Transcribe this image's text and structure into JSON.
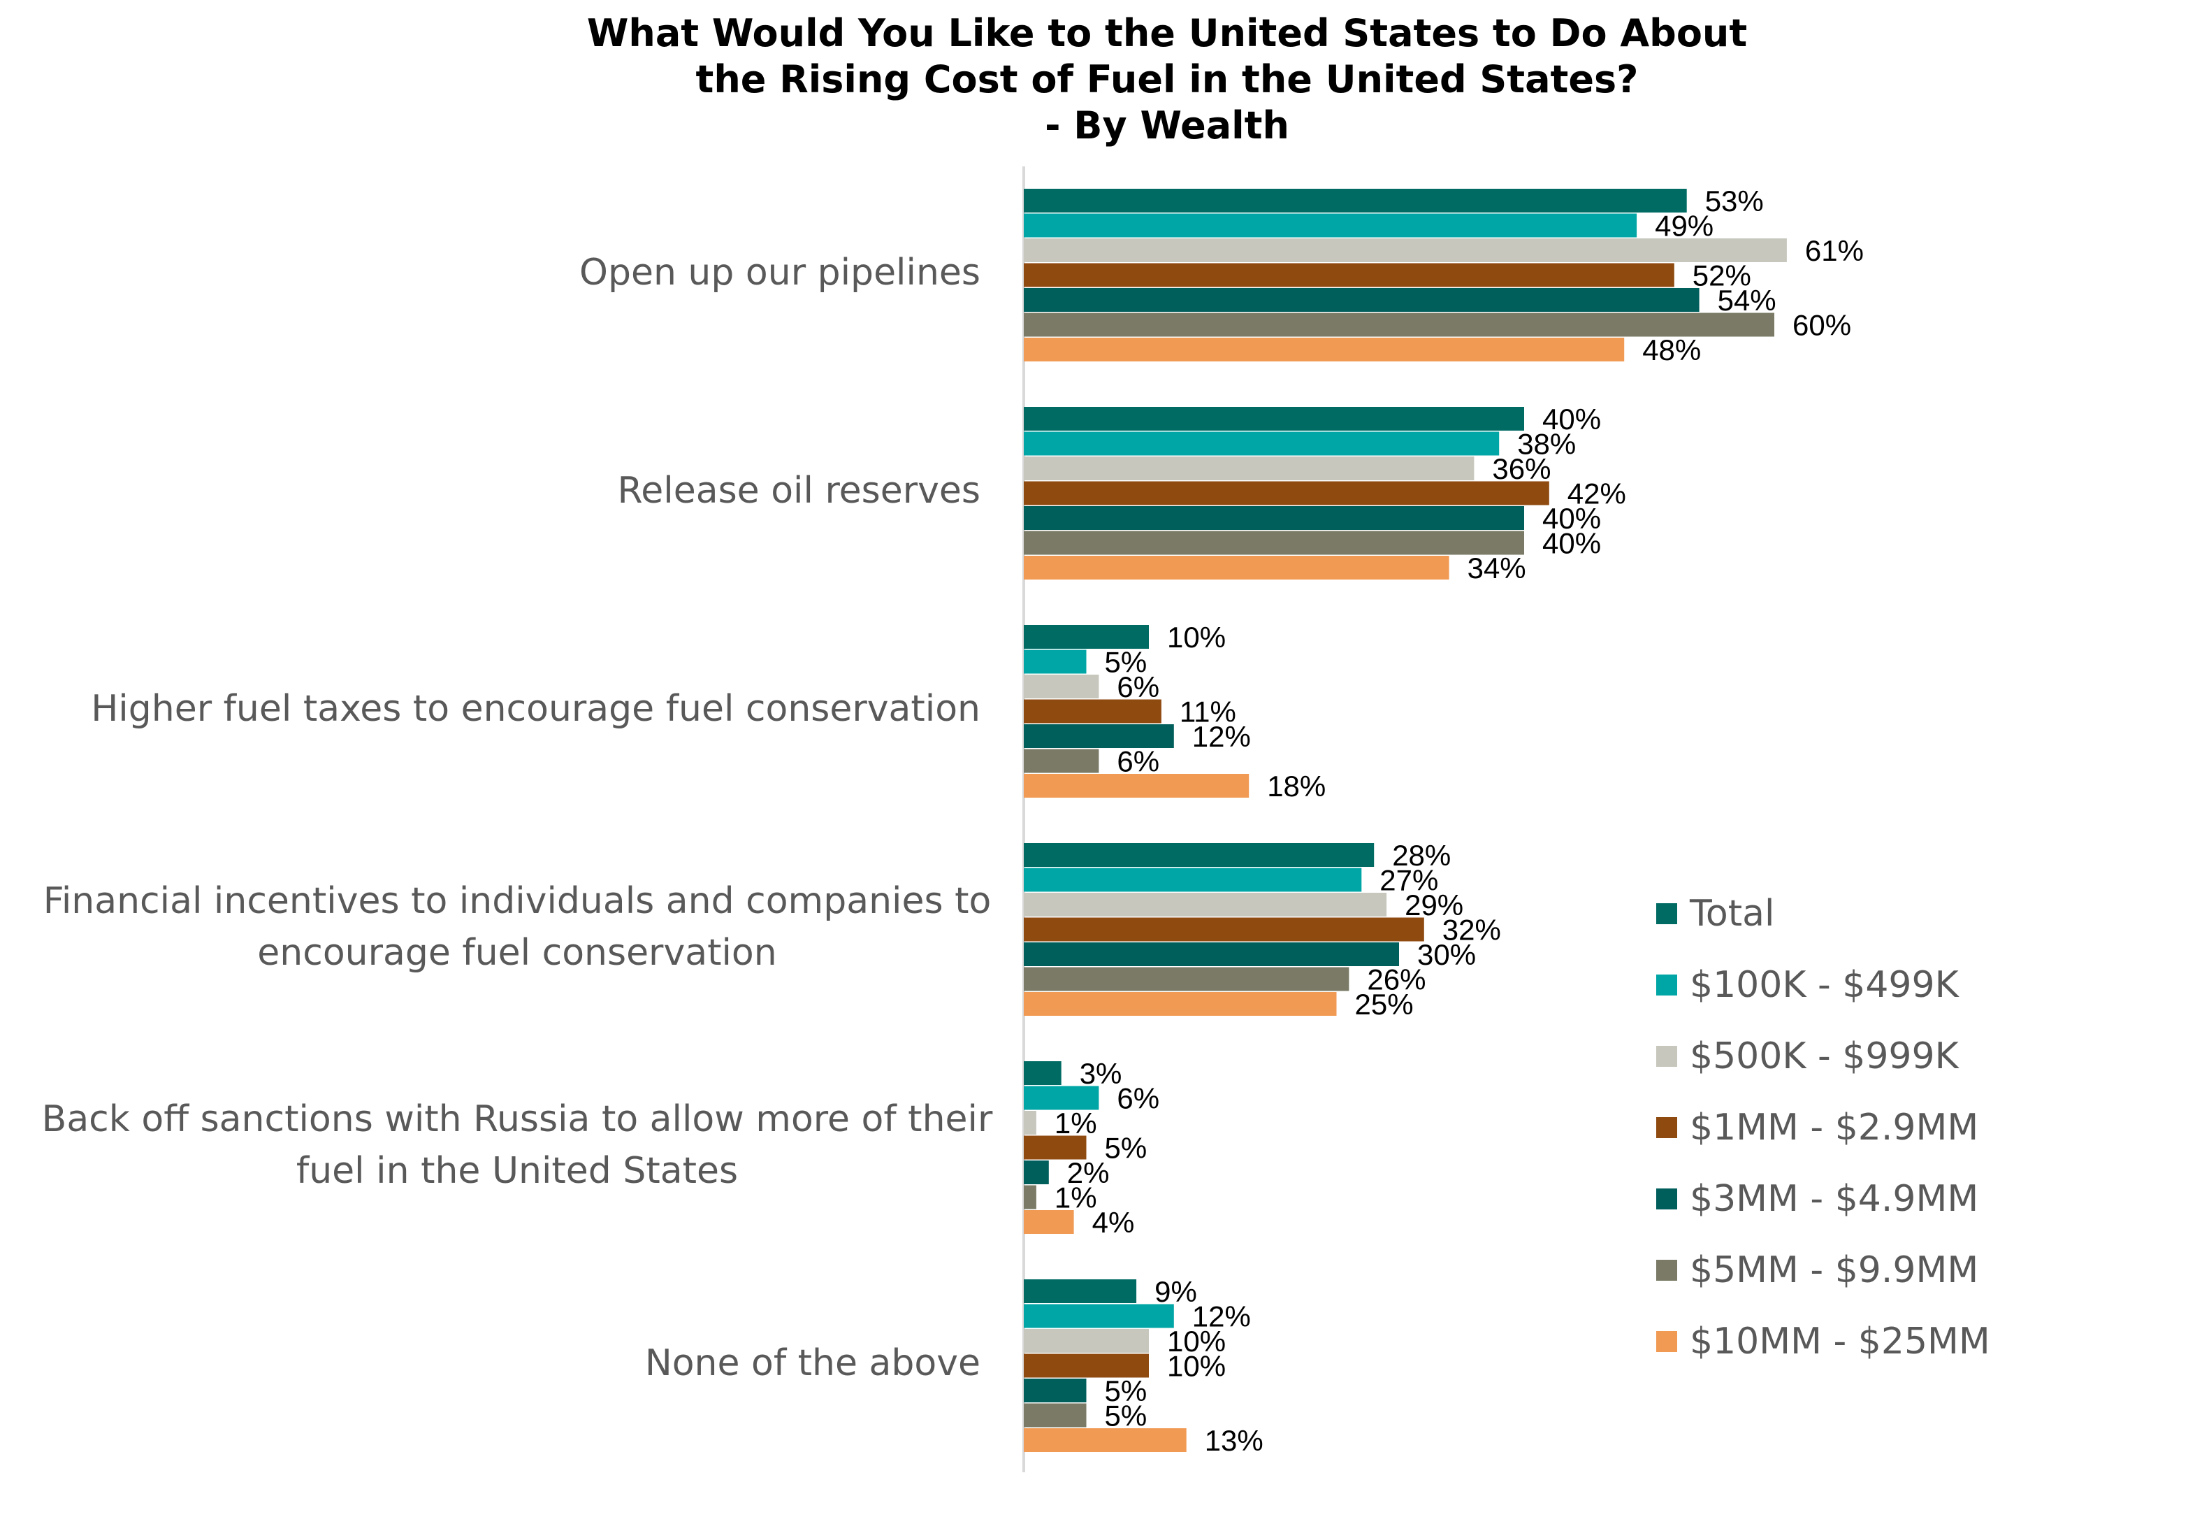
{
  "chart_data": {
    "type": "bar",
    "orientation": "horizontal",
    "title": [
      "What Would You Like to the United States to Do About",
      "the Rising Cost of Fuel in the United States?",
      "- By Wealth"
    ],
    "value_suffix": "%",
    "categories": [
      [
        "Open up our pipelines"
      ],
      [
        "Release oil reserves"
      ],
      [
        "Higher fuel taxes to encourage fuel conservation"
      ],
      [
        "Financial incentives to individuals and companies to",
        "encourage fuel conservation"
      ],
      [
        "Back off sanctions with Russia to allow more of their",
        "fuel in the United States"
      ],
      [
        "None of the above"
      ]
    ],
    "series": [
      {
        "name": "Total",
        "color": "#006B63",
        "values": [
          53,
          40,
          10,
          28,
          3,
          9
        ]
      },
      {
        "name": "$100K - $499K",
        "color": "#00A5A5",
        "values": [
          49,
          38,
          5,
          27,
          6,
          12
        ]
      },
      {
        "name": "$500K - $999K",
        "color": "#C7C7BE",
        "values": [
          61,
          36,
          6,
          29,
          1,
          10
        ]
      },
      {
        "name": "$1MM - $2.9MM",
        "color": "#8F4A10",
        "values": [
          52,
          42,
          11,
          32,
          5,
          10
        ]
      },
      {
        "name": "$3MM - $4.9MM",
        "color": "#005E5B",
        "values": [
          54,
          40,
          12,
          30,
          2,
          5
        ]
      },
      {
        "name": "$5MM - $9.9MM",
        "color": "#7A7A66",
        "values": [
          60,
          40,
          6,
          26,
          1,
          5
        ]
      },
      {
        "name": "$10MM - $25MM",
        "color": "#F19A54",
        "values": [
          48,
          34,
          18,
          25,
          4,
          13
        ]
      }
    ],
    "xlim": [
      0,
      100
    ],
    "grid": false,
    "legend_position": "right"
  }
}
